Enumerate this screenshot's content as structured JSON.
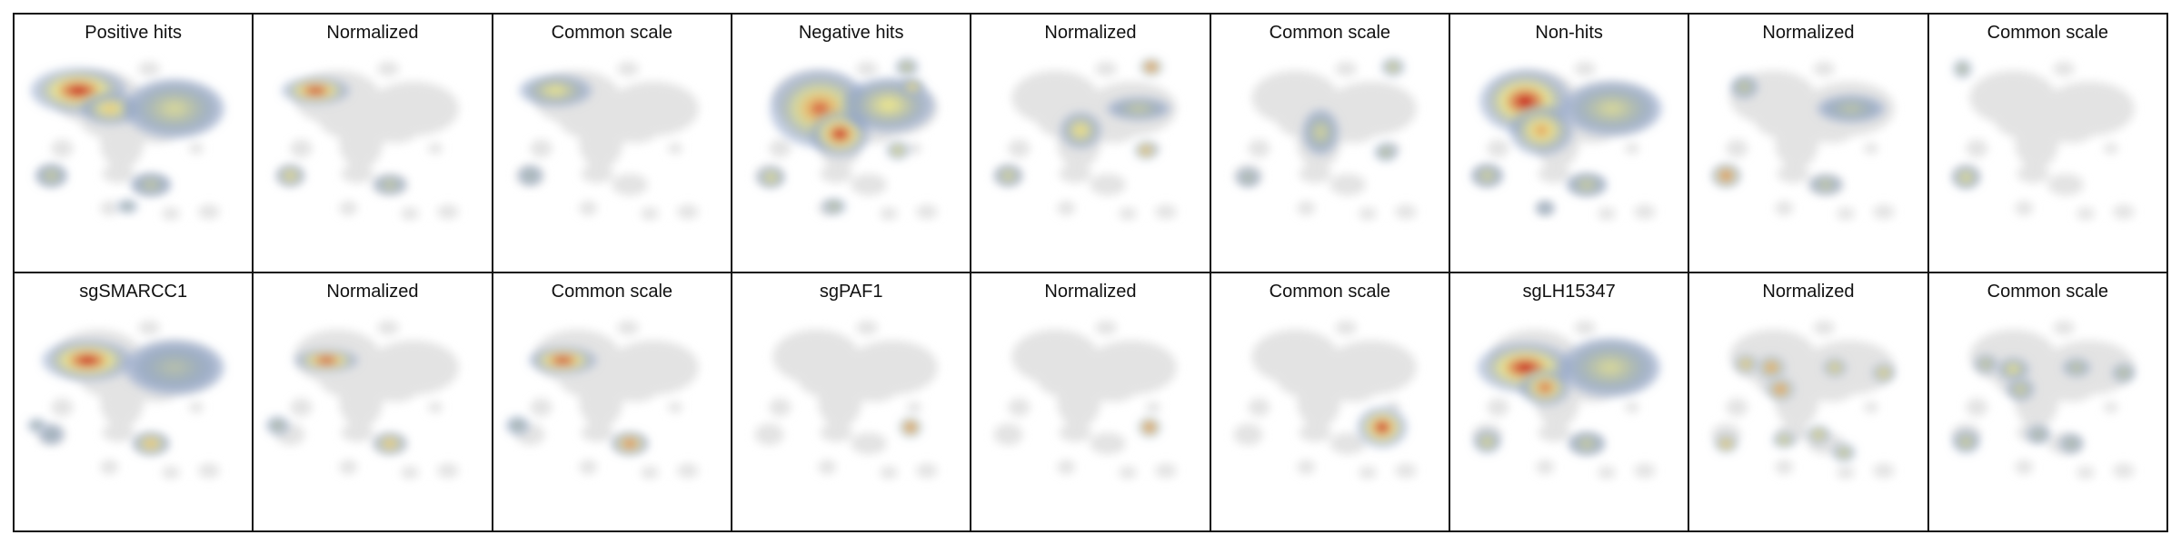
{
  "figure": {
    "rows": [
      {
        "panels": [
          {
            "title": "Positive hits",
            "density": "positive-raw"
          },
          {
            "title": "Normalized",
            "density": "positive-normalized"
          },
          {
            "title": "Common scale",
            "density": "positive-common"
          },
          {
            "title": "Negative hits",
            "density": "negative-raw"
          },
          {
            "title": "Normalized",
            "density": "negative-normalized"
          },
          {
            "title": "Common scale",
            "density": "negative-common"
          },
          {
            "title": "Non-hits",
            "density": "nonhits-raw"
          },
          {
            "title": "Normalized",
            "density": "nonhits-normalized"
          },
          {
            "title": "Common scale",
            "density": "nonhits-common"
          }
        ]
      },
      {
        "panels": [
          {
            "title": "sgSMARCC1",
            "density": "smarcc1-raw"
          },
          {
            "title": "Normalized",
            "density": "smarcc1-normalized"
          },
          {
            "title": "Common scale",
            "density": "smarcc1-common"
          },
          {
            "title": "sgPAF1",
            "density": "paf1-raw"
          },
          {
            "title": "Normalized",
            "density": "paf1-normalized"
          },
          {
            "title": "Common scale",
            "density": "paf1-common"
          },
          {
            "title": "sgLH15347",
            "density": "lh15347-raw"
          },
          {
            "title": "Normalized",
            "density": "lh15347-normalized"
          },
          {
            "title": "Common scale",
            "density": "lh15347-common"
          }
        ]
      }
    ],
    "colors": {
      "background_cells": "#e3e3e3",
      "low": "#8aa0c8",
      "mid": "#f3ec8a",
      "high": "#c81b1b",
      "frame": "#111111"
    }
  }
}
